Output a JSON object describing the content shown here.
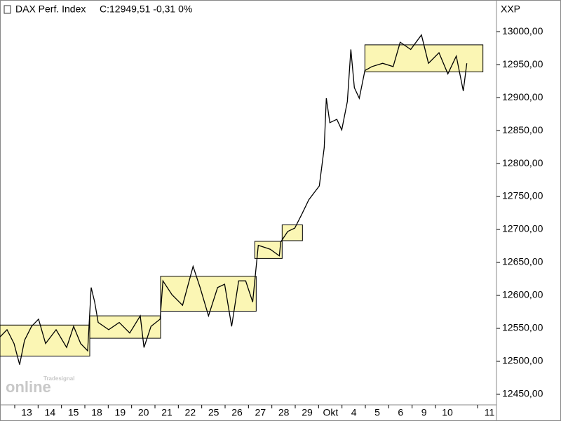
{
  "chart_data": {
    "type": "line",
    "title": "DAX Perf. Index",
    "quote": "C:12949,51 -0,31 0%",
    "quote_color": "#e31a1c",
    "y_axis_label": "XXP",
    "watermark": [
      "Tradesignal",
      "online"
    ],
    "xlim": [
      -1.14,
      20.1
    ],
    "ylim": [
      12434,
      13048
    ],
    "xticks": [
      {
        "value": 0,
        "label": "13"
      },
      {
        "value": 1,
        "label": "14"
      },
      {
        "value": 2,
        "label": "15"
      },
      {
        "value": 3,
        "label": "18"
      },
      {
        "value": 4,
        "label": "19"
      },
      {
        "value": 5,
        "label": "20"
      },
      {
        "value": 6,
        "label": "21"
      },
      {
        "value": 7,
        "label": "22"
      },
      {
        "value": 8,
        "label": "25"
      },
      {
        "value": 9,
        "label": "26"
      },
      {
        "value": 10,
        "label": "27"
      },
      {
        "value": 11,
        "label": "28"
      },
      {
        "value": 12,
        "label": "29"
      },
      {
        "value": 13,
        "label": "Okt"
      },
      {
        "value": 14,
        "label": "4"
      },
      {
        "value": 15,
        "label": "5"
      },
      {
        "value": 16,
        "label": "6"
      },
      {
        "value": 17,
        "label": "9"
      },
      {
        "value": 18,
        "label": "10"
      },
      {
        "value": 19.8,
        "label": "11"
      }
    ],
    "yticks": [
      {
        "value": 12450,
        "label": "12450,00"
      },
      {
        "value": 12500,
        "label": "12500,00"
      },
      {
        "value": 12550,
        "label": "12550,00"
      },
      {
        "value": 12600,
        "label": "12600,00"
      },
      {
        "value": 12650,
        "label": "12650,00"
      },
      {
        "value": 12700,
        "label": "12700,00"
      },
      {
        "value": 12750,
        "label": "12750,00"
      },
      {
        "value": 12800,
        "label": "12800,00"
      },
      {
        "value": 12850,
        "label": "12850,00"
      },
      {
        "value": 12900,
        "label": "12900,00"
      },
      {
        "value": 12950,
        "label": "12950,00"
      },
      {
        "value": 13000,
        "label": "13000,00"
      }
    ],
    "range_color": "#fbf6b4",
    "ranges": [
      {
        "x": [
          -1.14,
          2.7
        ],
        "y": [
          12508,
          12555
        ]
      },
      {
        "x": [
          2.7,
          5.73
        ],
        "y": [
          12535,
          12569
        ]
      },
      {
        "x": [
          5.73,
          9.82
        ],
        "y": [
          12576,
          12629
        ]
      },
      {
        "x": [
          9.76,
          10.93
        ],
        "y": [
          12656,
          12682
        ]
      },
      {
        "x": [
          10.93,
          11.8
        ],
        "y": [
          12683,
          12707
        ]
      },
      {
        "x": [
          14.47,
          19.52
        ],
        "y": [
          12939,
          12980
        ]
      }
    ],
    "series": [
      {
        "color": "#000000",
        "x": [
          -1.14,
          -0.84,
          -0.54,
          -0.3,
          -0.09,
          0.21,
          0.51,
          0.81,
          1.26,
          1.71,
          2.01,
          2.31,
          2.61,
          2.76,
          2.91,
          3.06,
          3.51,
          3.96,
          4.41,
          4.86,
          5.02,
          5.32,
          5.71,
          5.83,
          6.22,
          6.67,
          7.12,
          7.42,
          7.78,
          8.17,
          8.47,
          8.77,
          9.07,
          9.37,
          9.67,
          9.79,
          9.91,
          10.42,
          10.81,
          10.87,
          11.17,
          11.47,
          11.77,
          12.07,
          12.52,
          12.73,
          12.82,
          12.97,
          13.27,
          13.48,
          13.72,
          13.87,
          14.02,
          14.23,
          14.47,
          14.77,
          15.23,
          15.68,
          15.98,
          16.43,
          16.89,
          17.19,
          17.64,
          18.02,
          18.38,
          18.68,
          18.83
        ],
        "values": [
          12537,
          12548,
          12527,
          12495,
          12532,
          12553,
          12564,
          12527,
          12548,
          12521,
          12553,
          12527,
          12516,
          12612,
          12590,
          12559,
          12548,
          12559,
          12543,
          12569,
          12521,
          12553,
          12564,
          12622,
          12601,
          12585,
          12644,
          12612,
          12569,
          12612,
          12617,
          12553,
          12622,
          12622,
          12590,
          12633,
          12676,
          12670,
          12660,
          12681,
          12697,
          12702,
          12723,
          12745,
          12766,
          12824,
          12899,
          12862,
          12867,
          12851,
          12894,
          12973,
          12915,
          12899,
          12941,
          12947,
          12952,
          12947,
          12984,
          12973,
          12995,
          12952,
          12968,
          12936,
          12963,
          12910,
          12952
        ]
      }
    ]
  }
}
